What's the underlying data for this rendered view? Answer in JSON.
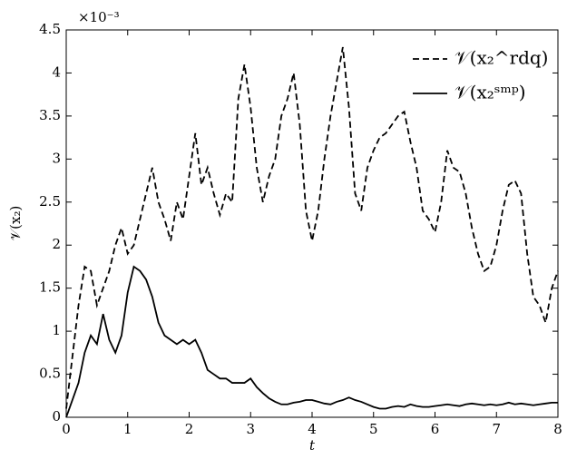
{
  "chart_data": {
    "type": "line",
    "xlabel": "t",
    "ylabel": "𝒱(x₂)",
    "y_exponent_label": "×10⁻³",
    "xlim": [
      0,
      8
    ],
    "xticks": [
      0,
      1,
      2,
      3,
      4,
      5,
      6,
      7,
      8
    ],
    "ylim": [
      0,
      4.5
    ],
    "yticks": [
      0,
      0.5,
      1,
      1.5,
      2,
      2.5,
      3,
      3.5,
      4,
      4.5
    ],
    "grid": false,
    "legend": "upper right",
    "x": [
      0,
      0.1,
      0.2,
      0.3,
      0.4,
      0.5,
      0.6,
      0.7,
      0.8,
      0.9,
      1,
      1.1,
      1.2,
      1.3,
      1.4,
      1.5,
      1.6,
      1.7,
      1.8,
      1.9,
      2,
      2.1,
      2.2,
      2.3,
      2.4,
      2.5,
      2.6,
      2.7,
      2.8,
      2.9,
      3,
      3.1,
      3.2,
      3.3,
      3.4,
      3.5,
      3.6,
      3.7,
      3.8,
      3.9,
      4,
      4.1,
      4.2,
      4.3,
      4.4,
      4.5,
      4.6,
      4.7,
      4.8,
      4.9,
      5,
      5.1,
      5.2,
      5.3,
      5.4,
      5.5,
      5.6,
      5.7,
      5.8,
      5.9,
      6,
      6.1,
      6.2,
      6.3,
      6.4,
      6.5,
      6.6,
      6.7,
      6.8,
      6.9,
      7,
      7.1,
      7.2,
      7.3,
      7.4,
      7.5,
      7.6,
      7.7,
      7.8,
      7.9,
      8
    ],
    "series": [
      {
        "name": "𝒱(x₂^rdq)",
        "color": "#000000",
        "dash": "dashed",
        "values": [
          0.1,
          0.7,
          1.3,
          1.75,
          1.7,
          1.3,
          1.5,
          1.7,
          2.0,
          2.2,
          1.9,
          2.0,
          2.3,
          2.6,
          2.9,
          2.5,
          2.3,
          2.05,
          2.5,
          2.3,
          2.8,
          3.3,
          2.7,
          2.9,
          2.6,
          2.35,
          2.6,
          2.5,
          3.7,
          4.1,
          3.6,
          2.9,
          2.5,
          2.8,
          3.0,
          3.5,
          3.7,
          4.0,
          3.4,
          2.4,
          2.05,
          2.4,
          3.0,
          3.5,
          3.9,
          4.3,
          3.6,
          2.6,
          2.4,
          2.9,
          3.1,
          3.25,
          3.3,
          3.4,
          3.5,
          3.55,
          3.2,
          2.9,
          2.4,
          2.3,
          2.15,
          2.5,
          3.1,
          2.9,
          2.85,
          2.6,
          2.2,
          1.9,
          1.7,
          1.75,
          2.0,
          2.4,
          2.7,
          2.75,
          2.6,
          1.9,
          1.4,
          1.3,
          1.1,
          1.5,
          1.7
        ]
      },
      {
        "name": "𝒱(x₂ˢᵐᵖ)",
        "color": "#000000",
        "dash": "solid",
        "values": [
          0,
          0.2,
          0.4,
          0.75,
          0.95,
          0.85,
          1.2,
          0.9,
          0.75,
          0.95,
          1.45,
          1.75,
          1.7,
          1.6,
          1.4,
          1.1,
          0.95,
          0.9,
          0.85,
          0.9,
          0.85,
          0.9,
          0.75,
          0.55,
          0.5,
          0.45,
          0.45,
          0.4,
          0.4,
          0.4,
          0.45,
          0.35,
          0.28,
          0.22,
          0.18,
          0.15,
          0.15,
          0.17,
          0.18,
          0.2,
          0.2,
          0.18,
          0.16,
          0.15,
          0.18,
          0.2,
          0.23,
          0.2,
          0.18,
          0.15,
          0.12,
          0.1,
          0.1,
          0.12,
          0.13,
          0.12,
          0.15,
          0.13,
          0.12,
          0.12,
          0.13,
          0.14,
          0.15,
          0.14,
          0.13,
          0.15,
          0.16,
          0.15,
          0.14,
          0.15,
          0.14,
          0.15,
          0.17,
          0.15,
          0.16,
          0.15,
          0.14,
          0.15,
          0.16,
          0.17,
          0.17
        ]
      }
    ]
  }
}
